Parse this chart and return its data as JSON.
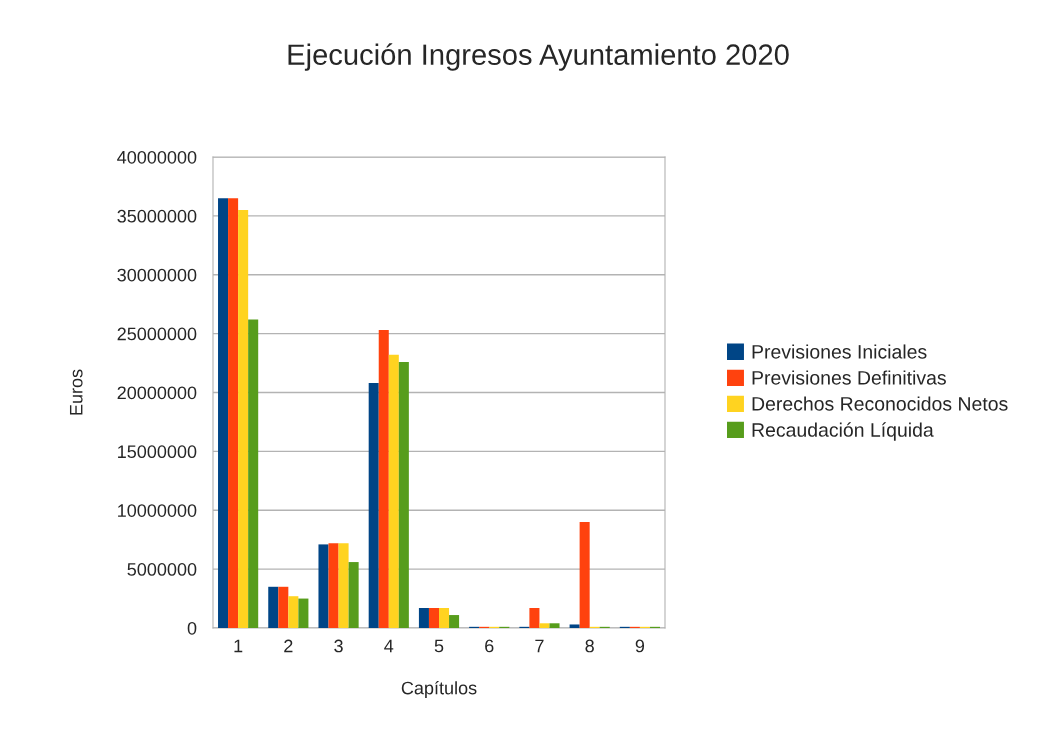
{
  "chart_data": {
    "type": "bar",
    "title": "Ejecución Ingresos Ayuntamiento 2020",
    "xlabel": "Capítulos",
    "ylabel": "Euros",
    "categories": [
      "1",
      "2",
      "3",
      "4",
      "5",
      "6",
      "7",
      "8",
      "9"
    ],
    "series": [
      {
        "name": "Previsiones Iniciales",
        "color": "#004586",
        "values": [
          36500000,
          3500000,
          7100000,
          20800000,
          1700000,
          100000,
          100000,
          300000,
          100000
        ]
      },
      {
        "name": "Previsiones Definitivas",
        "color": "#ff420e",
        "values": [
          36500000,
          3500000,
          7200000,
          25300000,
          1700000,
          100000,
          1700000,
          9000000,
          100000
        ]
      },
      {
        "name": "Derechos Reconocidos Netos",
        "color": "#ffd320",
        "values": [
          35500000,
          2700000,
          7200000,
          23200000,
          1700000,
          100000,
          400000,
          100000,
          100000
        ]
      },
      {
        "name": "Recaudación Líquida",
        "color": "#579d1c",
        "values": [
          26200000,
          2500000,
          5600000,
          22600000,
          1100000,
          100000,
          400000,
          100000,
          100000
        ]
      }
    ],
    "ylim": [
      0,
      40000000
    ],
    "yticks": [
      0,
      5000000,
      10000000,
      15000000,
      20000000,
      25000000,
      30000000,
      35000000,
      40000000
    ],
    "grid": "y",
    "legend": "right"
  }
}
